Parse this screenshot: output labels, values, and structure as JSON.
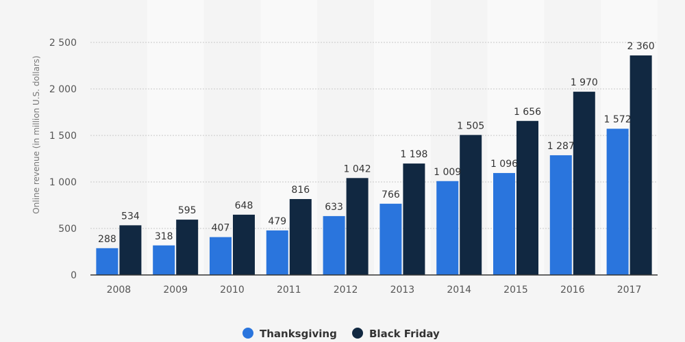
{
  "chart_data": {
    "type": "bar",
    "title": "",
    "xlabel": "",
    "ylabel": "Online revenue (in million U.S. dollars)",
    "categories": [
      "2008",
      "2009",
      "2010",
      "2011",
      "2012",
      "2013",
      "2014",
      "2015",
      "2016",
      "2017"
    ],
    "series": [
      {
        "name": "Thanksgiving",
        "color": "#2a75dd",
        "values": [
          288,
          318,
          407,
          479,
          633,
          766,
          1009,
          1096,
          1287,
          1572
        ],
        "labels": [
          "288",
          "318",
          "407",
          "479",
          "633",
          "766",
          "1 009",
          "1 096",
          "1 287",
          "1 572"
        ]
      },
      {
        "name": "Black Friday",
        "color": "#112841",
        "values": [
          534,
          595,
          648,
          816,
          1042,
          1198,
          1505,
          1656,
          1970,
          2360
        ],
        "labels": [
          "534",
          "595",
          "648",
          "816",
          "1 042",
          "1 198",
          "1 505",
          "1 656",
          "1 970",
          "2 360"
        ]
      }
    ],
    "ylim": [
      0,
      2500
    ],
    "yticks": [
      0,
      500,
      1000,
      1500,
      2000,
      2500
    ],
    "ytick_labels": [
      "0",
      "500",
      "1 000",
      "1 500",
      "2 000",
      "2 500"
    ],
    "grid": true,
    "legend_position": "bottom-center"
  }
}
